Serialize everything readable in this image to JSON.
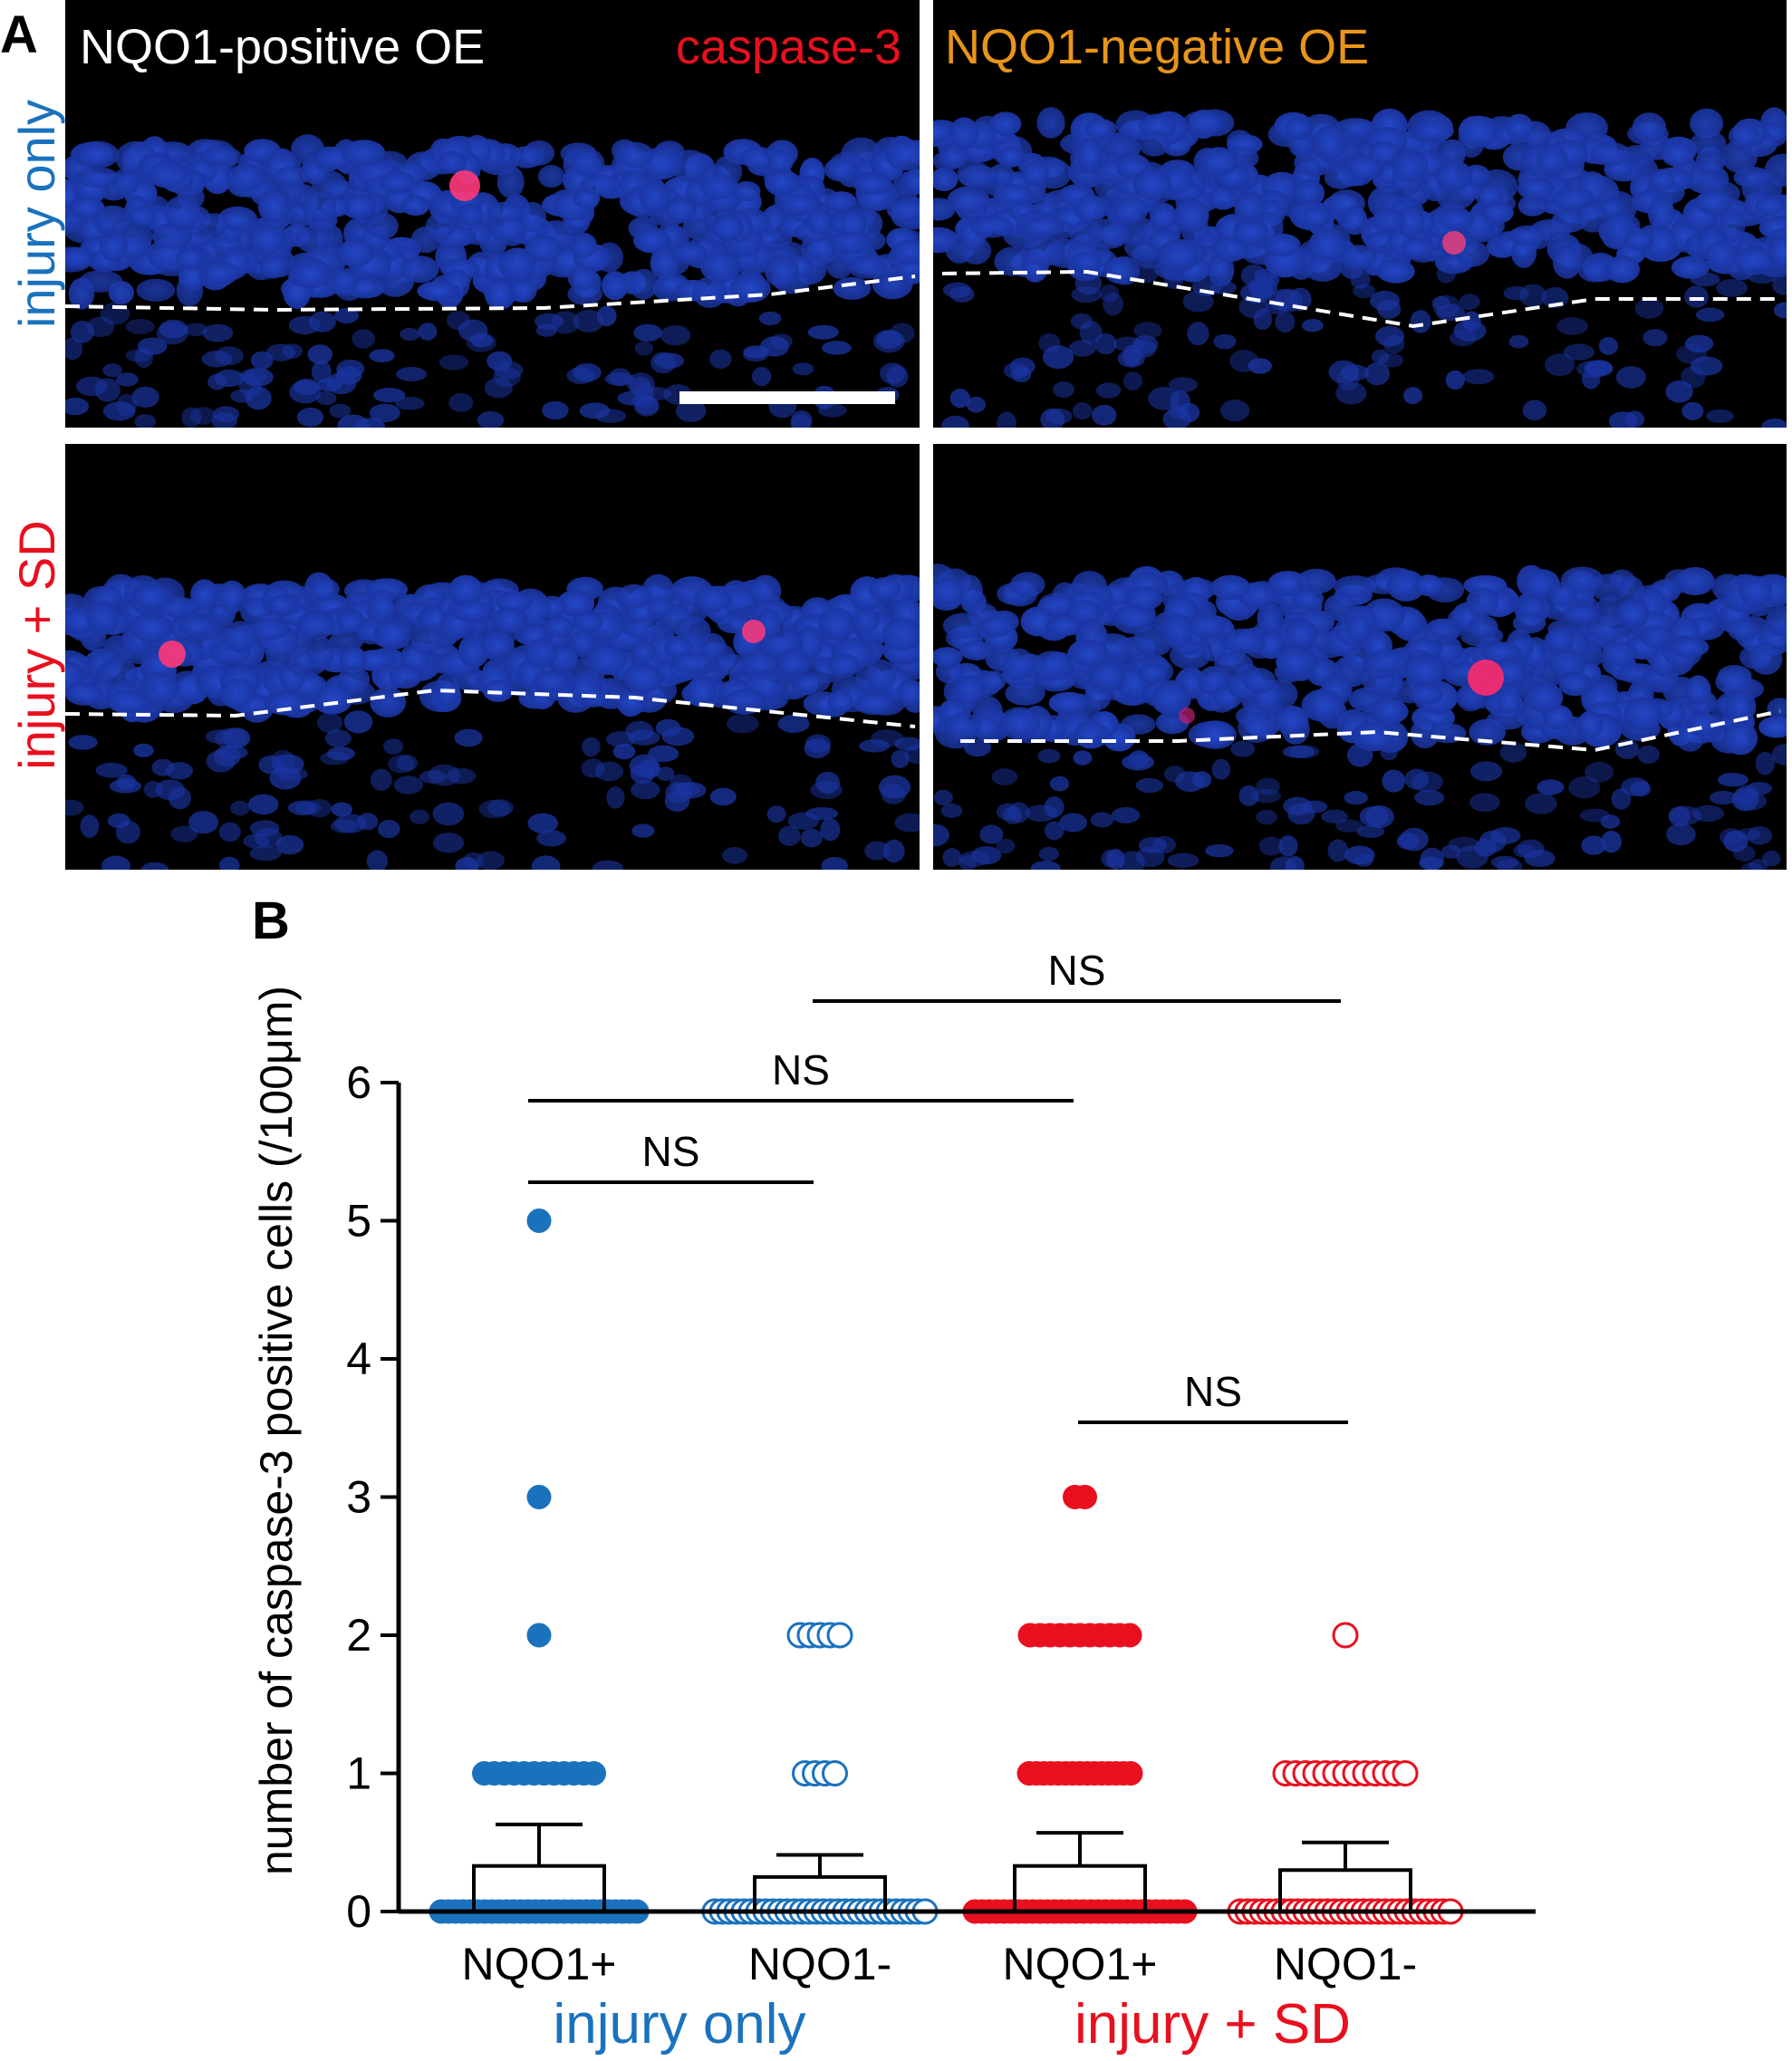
{
  "panel_a": {
    "letter": "A",
    "header_left_white": "NQO1-positive OE",
    "header_left_red": "caspase-3",
    "header_right_orange": "NQO1-negative OE",
    "row_labels": [
      "injury only",
      "injury + SD"
    ]
  },
  "colors": {
    "injury_only": "#1a72bd",
    "injury_sd": "#e8101f",
    "nuclei": "#1f3fb4",
    "caspase": "#ff2b6e",
    "orange": "#e8951a"
  },
  "chart_data": {
    "panel_letter": "B",
    "type": "scatter",
    "ylabel": "number of caspase-3 positive cells (/100μm)",
    "xlabel": "",
    "ylim": [
      0,
      6
    ],
    "yticks": [
      0,
      1,
      2,
      3,
      4,
      5,
      6
    ],
    "categories": [
      "NQO1+",
      "NQO1-",
      "NQO1+",
      "NQO1-"
    ],
    "groups": [
      {
        "label": "injury only",
        "color": "#1a72bd",
        "categories": [
          0,
          1
        ]
      },
      {
        "label": "injury + SD",
        "color": "#e8101f",
        "categories": [
          2,
          3
        ]
      }
    ],
    "series": [
      {
        "category": "NQO1+",
        "group": "injury only",
        "filled": true,
        "mean": 0.33,
        "sem": 0.3,
        "counts": [
          {
            "y": 0,
            "n": 28
          },
          {
            "y": 1,
            "n": 12
          },
          {
            "y": 2,
            "n": 1
          },
          {
            "y": 3,
            "n": 1
          },
          {
            "y": 5,
            "n": 1
          }
        ]
      },
      {
        "category": "NQO1-",
        "group": "injury only",
        "filled": false,
        "mean": 0.25,
        "sem": 0.16,
        "counts": [
          {
            "y": 0,
            "n": 30
          },
          {
            "y": 1,
            "n": 4
          },
          {
            "y": 2,
            "n": 5
          }
        ]
      },
      {
        "category": "NQO1+",
        "group": "injury + SD",
        "filled": true,
        "mean": 0.33,
        "sem": 0.24,
        "counts": [
          {
            "y": 0,
            "n": 30
          },
          {
            "y": 1,
            "n": 15
          },
          {
            "y": 2,
            "n": 11
          },
          {
            "y": 3,
            "n": 2
          }
        ]
      },
      {
        "category": "NQO1-",
        "group": "injury + SD",
        "filled": false,
        "mean": 0.3,
        "sem": 0.2,
        "counts": [
          {
            "y": 0,
            "n": 30
          },
          {
            "y": 1,
            "n": 13
          },
          {
            "y": 2,
            "n": 1
          }
        ]
      }
    ],
    "comparisons": [
      {
        "from": 0,
        "to": 1,
        "label": "NS"
      },
      {
        "from": 0,
        "to": 2,
        "label": "NS"
      },
      {
        "from": 1,
        "to": 3,
        "label": "NS"
      },
      {
        "from": 2,
        "to": 3,
        "label": "NS"
      }
    ]
  }
}
